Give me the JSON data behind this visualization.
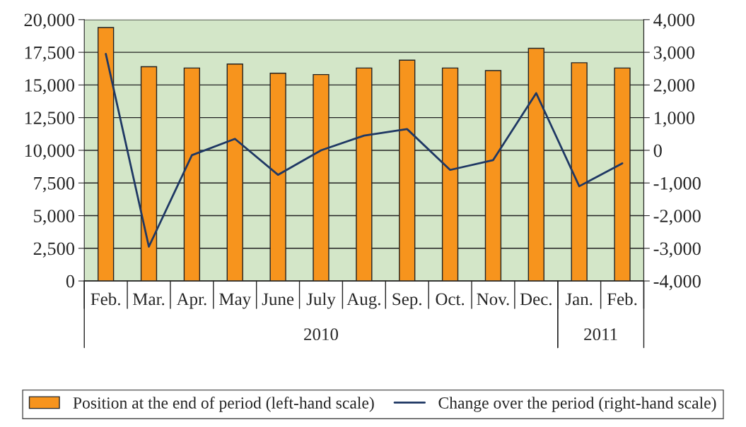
{
  "chart_data": {
    "type": "bar",
    "categories": [
      "Feb.",
      "Mar.",
      "Apr.",
      "May",
      "June",
      "July",
      "Aug.",
      "Sep.",
      "Oct.",
      "Nov.",
      "Dec.",
      "Jan.",
      "Feb."
    ],
    "series": [
      {
        "name": "Position at the end of period (left-hand scale)",
        "color": "#f7941d",
        "values": [
          19400,
          16400,
          16300,
          16600,
          15900,
          15800,
          16300,
          16900,
          16300,
          16100,
          17800,
          16700,
          16300
        ]
      },
      {
        "name": "Change over the period (right-hand scale)",
        "type": "line",
        "axis": "y2",
        "color": "#1f3864",
        "values": [
          2950,
          -2950,
          -150,
          350,
          -750,
          0,
          450,
          650,
          -600,
          -300,
          1750,
          -1100,
          -400
        ]
      }
    ],
    "ylim": [
      0,
      20000
    ],
    "yticks": [
      {
        "value": 0,
        "label": "0"
      },
      {
        "value": 2500,
        "label": "2,500"
      },
      {
        "value": 5000,
        "label": "5,000"
      },
      {
        "value": 7500,
        "label": "7,500"
      },
      {
        "value": 10000,
        "label": "10,000"
      },
      {
        "value": 12500,
        "label": "12,500"
      },
      {
        "value": 15000,
        "label": "15,000"
      },
      {
        "value": 17500,
        "label": "17,500"
      },
      {
        "value": 20000,
        "label": "20,000"
      }
    ],
    "y2lim": [
      -4000,
      4000
    ],
    "y2ticks": [
      {
        "value": -4000,
        "label": "-4,000"
      },
      {
        "value": -3000,
        "label": "-3,000"
      },
      {
        "value": -2000,
        "label": "-2,000"
      },
      {
        "value": -1000,
        "label": "-1,000"
      },
      0,
      {
        "value": 1000,
        "label": "1,000"
      },
      {
        "value": 2000,
        "label": "2,000"
      },
      {
        "value": 3000,
        "label": "3,000"
      },
      {
        "value": 4000,
        "label": "4,000"
      }
    ],
    "annotations": [
      "2010",
      "2011"
    ],
    "grid": "y",
    "legend": "bottom",
    "marker": "none",
    "line_style": "solid"
  }
}
